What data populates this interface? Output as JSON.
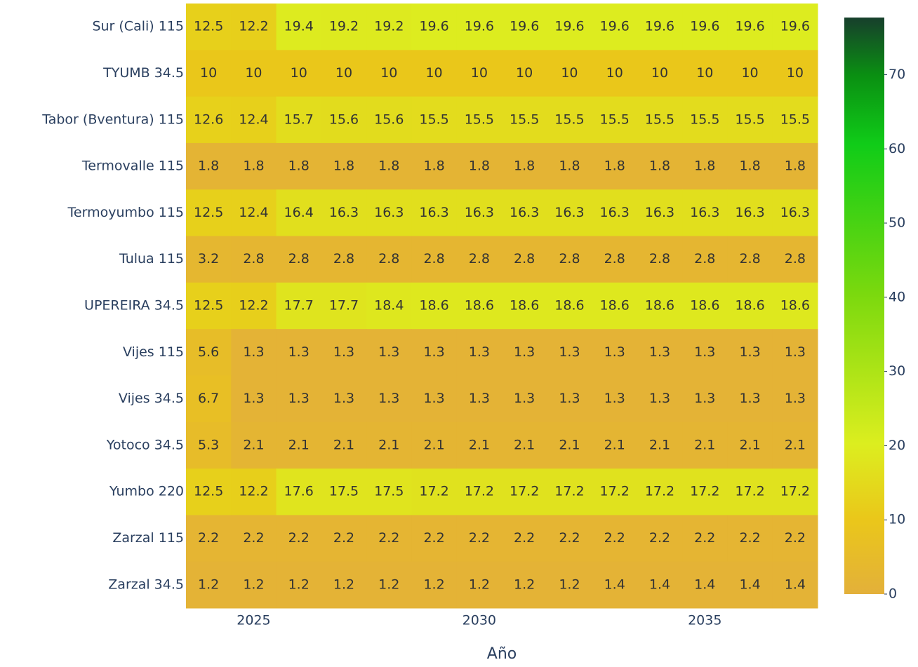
{
  "chart_data": {
    "type": "heatmap",
    "x_axis_title": "Año",
    "x": [
      2024,
      2025,
      2026,
      2027,
      2028,
      2029,
      2030,
      2031,
      2032,
      2033,
      2034,
      2035,
      2036,
      2037
    ],
    "xlim": [
      2023.5,
      2037.5
    ],
    "xticks": [
      2025,
      2030,
      2035
    ],
    "categories": [
      "Sur (Cali) 115",
      "TYUMB 34.5",
      "Tabor (Bventura) 115",
      "Termovalle 115",
      "Termoyumbo 115",
      "Tulua 115",
      "UPEREIRA 34.5",
      "Vijes 115",
      "Vijes 34.5",
      "Yotoco 34.5",
      "Yumbo 220",
      "Zarzal 115",
      "Zarzal 34.5"
    ],
    "z": [
      [
        12.5,
        12.2,
        19.4,
        19.2,
        19.2,
        19.6,
        19.6,
        19.6,
        19.6,
        19.6,
        19.6,
        19.6,
        19.6,
        19.6
      ],
      [
        10,
        10,
        10,
        10,
        10,
        10,
        10,
        10,
        10,
        10,
        10,
        10,
        10,
        10
      ],
      [
        12.6,
        12.4,
        15.7,
        15.6,
        15.6,
        15.5,
        15.5,
        15.5,
        15.5,
        15.5,
        15.5,
        15.5,
        15.5,
        15.5
      ],
      [
        1.8,
        1.8,
        1.8,
        1.8,
        1.8,
        1.8,
        1.8,
        1.8,
        1.8,
        1.8,
        1.8,
        1.8,
        1.8,
        1.8
      ],
      [
        12.5,
        12.4,
        16.4,
        16.3,
        16.3,
        16.3,
        16.3,
        16.3,
        16.3,
        16.3,
        16.3,
        16.3,
        16.3,
        16.3
      ],
      [
        3.2,
        2.8,
        2.8,
        2.8,
        2.8,
        2.8,
        2.8,
        2.8,
        2.8,
        2.8,
        2.8,
        2.8,
        2.8,
        2.8
      ],
      [
        12.5,
        12.2,
        17.7,
        17.7,
        18.4,
        18.6,
        18.6,
        18.6,
        18.6,
        18.6,
        18.6,
        18.6,
        18.6,
        18.6
      ],
      [
        5.6,
        1.3,
        1.3,
        1.3,
        1.3,
        1.3,
        1.3,
        1.3,
        1.3,
        1.3,
        1.3,
        1.3,
        1.3,
        1.3
      ],
      [
        6.7,
        1.3,
        1.3,
        1.3,
        1.3,
        1.3,
        1.3,
        1.3,
        1.3,
        1.3,
        1.3,
        1.3,
        1.3,
        1.3
      ],
      [
        5.3,
        2.1,
        2.1,
        2.1,
        2.1,
        2.1,
        2.1,
        2.1,
        2.1,
        2.1,
        2.1,
        2.1,
        2.1,
        2.1
      ],
      [
        12.5,
        12.2,
        17.6,
        17.5,
        17.5,
        17.2,
        17.2,
        17.2,
        17.2,
        17.2,
        17.2,
        17.2,
        17.2,
        17.2
      ],
      [
        2.2,
        2.2,
        2.2,
        2.2,
        2.2,
        2.2,
        2.2,
        2.2,
        2.2,
        2.2,
        2.2,
        2.2,
        2.2,
        2.2
      ],
      [
        1.2,
        1.2,
        1.2,
        1.2,
        1.2,
        1.2,
        1.2,
        1.2,
        1.2,
        1.4,
        1.4,
        1.4,
        1.4,
        1.4
      ]
    ],
    "zlim": [
      0,
      77.7
    ],
    "colorbar_ticks": [
      0,
      10,
      20,
      30,
      40,
      50,
      60,
      70
    ],
    "colorscale": [
      [
        0,
        "#e3b03a"
      ],
      [
        0.13,
        "#eac71a"
      ],
      [
        0.26,
        "#dcee1f"
      ],
      [
        0.52,
        "#7bd90e"
      ],
      [
        0.78,
        "#10cc18"
      ],
      [
        0.9,
        "#0a8f12"
      ],
      [
        1,
        "#173f2c"
      ]
    ]
  }
}
